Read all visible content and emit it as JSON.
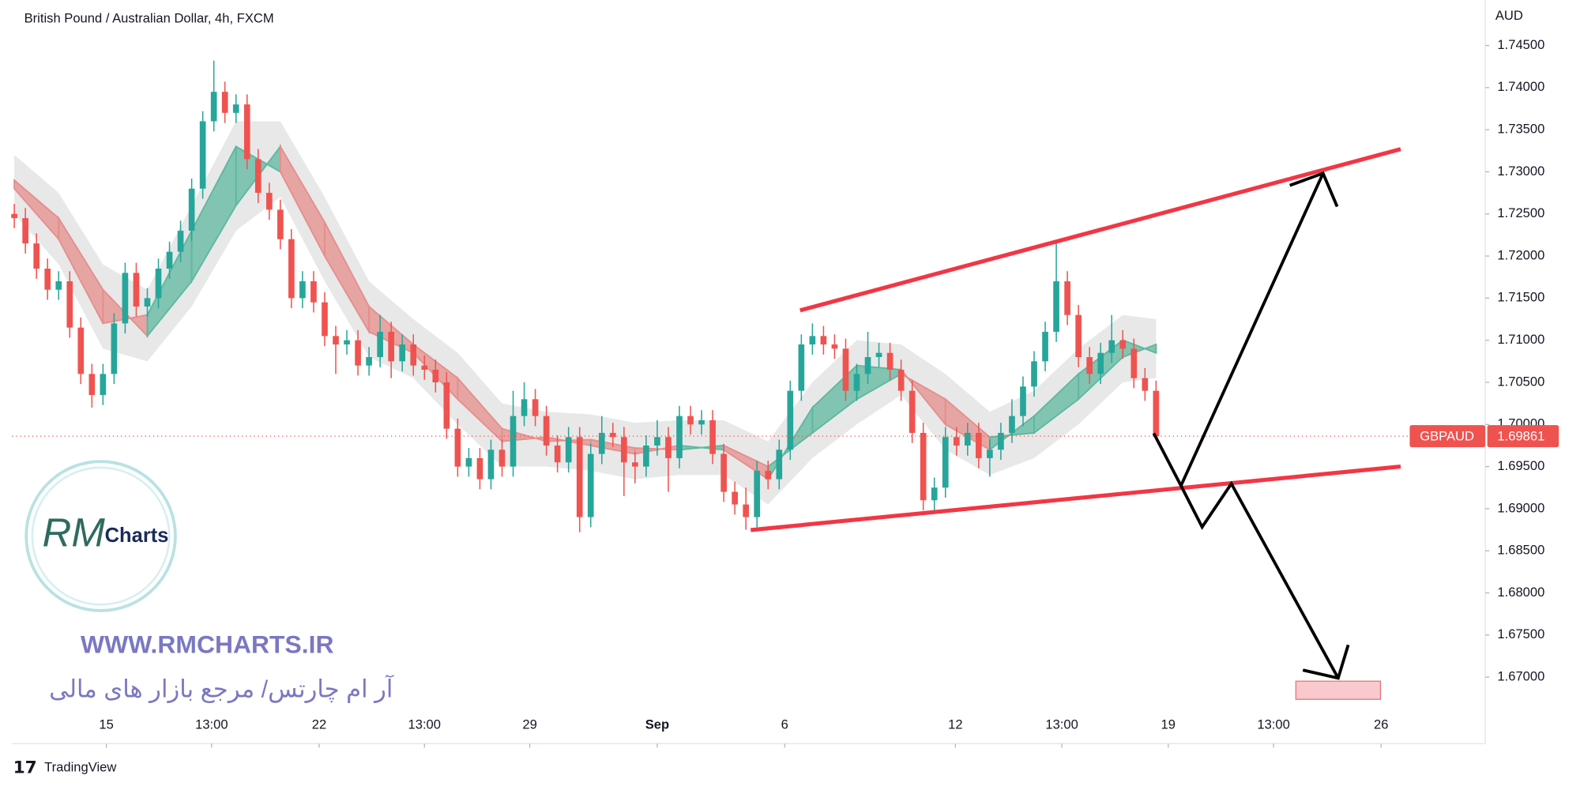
{
  "chart_data": {
    "type": "candlestick",
    "title": "British Pound / Australian Dollar, 4h, FXCM",
    "currency": "AUD",
    "symbol": "GBPAUD",
    "last_price": 1.69861,
    "up_color": "#26a69a",
    "down_color": "#ef5350",
    "ylim": [
      1.6621,
      1.7504
    ],
    "xlim": [
      -0.2,
      132.7
    ],
    "yticks": [
      {
        "value": 1.745,
        "label": "1.74500"
      },
      {
        "value": 1.74,
        "label": "1.74000"
      },
      {
        "value": 1.735,
        "label": "1.73500"
      },
      {
        "value": 1.73,
        "label": "1.73000"
      },
      {
        "value": 1.725,
        "label": "1.72500"
      },
      {
        "value": 1.72,
        "label": "1.72000"
      },
      {
        "value": 1.715,
        "label": "1.71500"
      },
      {
        "value": 1.71,
        "label": "1.71000"
      },
      {
        "value": 1.705,
        "label": "1.70500"
      },
      {
        "value": 1.7,
        "label": "1.70000"
      },
      {
        "value": 1.695,
        "label": "1.69500"
      },
      {
        "value": 1.69,
        "label": "1.69000"
      },
      {
        "value": 1.685,
        "label": "1.68500"
      },
      {
        "value": 1.68,
        "label": "1.68000"
      },
      {
        "value": 1.675,
        "label": "1.67500"
      },
      {
        "value": 1.67,
        "label": "1.67000"
      }
    ],
    "xticks": [
      {
        "value": 8.3,
        "label": "15"
      },
      {
        "value": 17.8,
        "label": "13:00"
      },
      {
        "value": 27.5,
        "label": "22"
      },
      {
        "value": 37.0,
        "label": "13:00"
      },
      {
        "value": 46.5,
        "label": "29"
      },
      {
        "value": 58.0,
        "label": "Sep"
      },
      {
        "value": 69.5,
        "label": "6"
      },
      {
        "value": 84.9,
        "label": "12"
      },
      {
        "value": 94.5,
        "label": "13:00"
      },
      {
        "value": 104.1,
        "label": "19"
      },
      {
        "value": 113.6,
        "label": "13:00"
      },
      {
        "value": 123.3,
        "label": "26"
      }
    ],
    "ohlc": [
      [
        1.725,
        1.7262,
        1.7233,
        1.7245
      ],
      [
        1.7245,
        1.7257,
        1.7203,
        1.7215
      ],
      [
        1.7215,
        1.7227,
        1.7173,
        1.7185
      ],
      [
        1.7185,
        1.7197,
        1.7148,
        1.716
      ],
      [
        1.716,
        1.7182,
        1.7148,
        1.717
      ],
      [
        1.717,
        1.7182,
        1.7103,
        1.7115
      ],
      [
        1.7115,
        1.7127,
        1.7048,
        1.706
      ],
      [
        1.706,
        1.7072,
        1.702,
        1.7035
      ],
      [
        1.7035,
        1.7072,
        1.7023,
        1.706
      ],
      [
        1.706,
        1.7132,
        1.7048,
        1.712
      ],
      [
        1.712,
        1.7192,
        1.7108,
        1.718
      ],
      [
        1.718,
        1.7192,
        1.7128,
        1.714
      ],
      [
        1.714,
        1.7162,
        1.7128,
        1.715
      ],
      [
        1.715,
        1.7197,
        1.7138,
        1.7185
      ],
      [
        1.7185,
        1.7217,
        1.7173,
        1.7205
      ],
      [
        1.7205,
        1.7242,
        1.7193,
        1.723
      ],
      [
        1.723,
        1.7292,
        1.7218,
        1.728
      ],
      [
        1.728,
        1.7372,
        1.7268,
        1.736
      ],
      [
        1.736,
        1.7432,
        1.7348,
        1.7395
      ],
      [
        1.7395,
        1.7407,
        1.7358,
        1.737
      ],
      [
        1.737,
        1.7392,
        1.7358,
        1.738
      ],
      [
        1.738,
        1.7392,
        1.7303,
        1.7315
      ],
      [
        1.7315,
        1.7327,
        1.7263,
        1.7275
      ],
      [
        1.7275,
        1.7287,
        1.7243,
        1.7255
      ],
      [
        1.7255,
        1.7267,
        1.7208,
        1.722
      ],
      [
        1.722,
        1.7232,
        1.7138,
        1.715
      ],
      [
        1.715,
        1.7182,
        1.7138,
        1.717
      ],
      [
        1.717,
        1.7182,
        1.7133,
        1.7145
      ],
      [
        1.7145,
        1.7157,
        1.7093,
        1.7105
      ],
      [
        1.7105,
        1.7117,
        1.706,
        1.7095
      ],
      [
        1.7095,
        1.7112,
        1.7083,
        1.71
      ],
      [
        1.71,
        1.7112,
        1.7058,
        1.707
      ],
      [
        1.707,
        1.7092,
        1.7058,
        1.708
      ],
      [
        1.708,
        1.713,
        1.7068,
        1.711
      ],
      [
        1.711,
        1.7122,
        1.7055,
        1.7075
      ],
      [
        1.7075,
        1.7107,
        1.7063,
        1.7095
      ],
      [
        1.7095,
        1.7107,
        1.7058,
        1.707
      ],
      [
        1.707,
        1.7082,
        1.7053,
        1.7065
      ],
      [
        1.7065,
        1.7077,
        1.7038,
        1.705
      ],
      [
        1.705,
        1.7062,
        1.6983,
        1.6995
      ],
      [
        1.6995,
        1.7007,
        1.6938,
        1.695
      ],
      [
        1.695,
        1.6972,
        1.6938,
        1.696
      ],
      [
        1.696,
        1.6972,
        1.6923,
        1.6935
      ],
      [
        1.6935,
        1.6982,
        1.6923,
        1.697
      ],
      [
        1.697,
        1.6982,
        1.6938,
        1.695
      ],
      [
        1.695,
        1.704,
        1.6938,
        1.701
      ],
      [
        1.701,
        1.705,
        1.6998,
        1.703
      ],
      [
        1.703,
        1.7042,
        1.6998,
        1.701
      ],
      [
        1.701,
        1.7022,
        1.6963,
        1.6975
      ],
      [
        1.6975,
        1.6987,
        1.6943,
        1.6955
      ],
      [
        1.6955,
        1.6997,
        1.6943,
        1.6985
      ],
      [
        1.6985,
        1.6997,
        1.6872,
        1.689
      ],
      [
        1.689,
        1.6977,
        1.6878,
        1.6965
      ],
      [
        1.6965,
        1.701,
        1.6953,
        1.699
      ],
      [
        1.699,
        1.7002,
        1.6973,
        1.6985
      ],
      [
        1.6985,
        1.6997,
        1.6915,
        1.6955
      ],
      [
        1.6955,
        1.6967,
        1.693,
        1.695
      ],
      [
        1.695,
        1.6987,
        1.6938,
        1.6975
      ],
      [
        1.6975,
        1.7005,
        1.6963,
        1.6985
      ],
      [
        1.6985,
        1.6997,
        1.692,
        1.696
      ],
      [
        1.696,
        1.7022,
        1.6948,
        1.701
      ],
      [
        1.701,
        1.7022,
        1.6988,
        1.7
      ],
      [
        1.7,
        1.7017,
        1.6988,
        1.7005
      ],
      [
        1.7005,
        1.7017,
        1.6953,
        1.6965
      ],
      [
        1.6965,
        1.6977,
        1.6908,
        1.692
      ],
      [
        1.692,
        1.6932,
        1.6893,
        1.6905
      ],
      [
        1.6905,
        1.6925,
        1.6875,
        1.689
      ],
      [
        1.689,
        1.6957,
        1.6878,
        1.6945
      ],
      [
        1.6945,
        1.6957,
        1.6923,
        1.6935
      ],
      [
        1.6935,
        1.6982,
        1.6923,
        1.697
      ],
      [
        1.697,
        1.7052,
        1.6958,
        1.704
      ],
      [
        1.704,
        1.7107,
        1.7028,
        1.7095
      ],
      [
        1.7095,
        1.712,
        1.7083,
        1.7105
      ],
      [
        1.7105,
        1.7117,
        1.7083,
        1.7095
      ],
      [
        1.7095,
        1.7107,
        1.7078,
        1.709
      ],
      [
        1.709,
        1.7102,
        1.7028,
        1.704
      ],
      [
        1.704,
        1.7072,
        1.7028,
        1.706
      ],
      [
        1.706,
        1.711,
        1.7048,
        1.708
      ],
      [
        1.708,
        1.7097,
        1.7068,
        1.7085
      ],
      [
        1.7085,
        1.7097,
        1.7053,
        1.7065
      ],
      [
        1.7065,
        1.7077,
        1.7028,
        1.704
      ],
      [
        1.704,
        1.7052,
        1.6978,
        1.699
      ],
      [
        1.699,
        1.7002,
        1.6898,
        1.691
      ],
      [
        1.691,
        1.6937,
        1.6898,
        1.6925
      ],
      [
        1.6925,
        1.6997,
        1.6913,
        1.6985
      ],
      [
        1.6985,
        1.6997,
        1.6963,
        1.6975
      ],
      [
        1.6975,
        1.7002,
        1.6963,
        1.699
      ],
      [
        1.699,
        1.7002,
        1.6948,
        1.696
      ],
      [
        1.696,
        1.6982,
        1.6938,
        1.697
      ],
      [
        1.697,
        1.7002,
        1.6958,
        1.699
      ],
      [
        1.699,
        1.703,
        1.6978,
        1.701
      ],
      [
        1.701,
        1.7057,
        1.6998,
        1.7045
      ],
      [
        1.7045,
        1.7087,
        1.7033,
        1.7075
      ],
      [
        1.7075,
        1.7122,
        1.7063,
        1.711
      ],
      [
        1.711,
        1.7215,
        1.7098,
        1.717
      ],
      [
        1.717,
        1.7182,
        1.7118,
        1.713
      ],
      [
        1.713,
        1.7142,
        1.7068,
        1.708
      ],
      [
        1.708,
        1.7092,
        1.7048,
        1.706
      ],
      [
        1.706,
        1.7097,
        1.7048,
        1.7085
      ],
      [
        1.7085,
        1.713,
        1.7073,
        1.71
      ],
      [
        1.71,
        1.7112,
        1.7078,
        1.709
      ],
      [
        1.709,
        1.7102,
        1.7043,
        1.7055
      ],
      [
        1.7055,
        1.7067,
        1.7028,
        1.704
      ],
      [
        1.704,
        1.7052,
        1.6983,
        1.6986
      ]
    ],
    "ribbon": {
      "up_color": "#5fb8a0",
      "down_color": "#e58f8c",
      "envelope_color": "#d9d9d9",
      "x": [
        0,
        4,
        8,
        12,
        16,
        20,
        24,
        28,
        32,
        36,
        40,
        44,
        48,
        52,
        56,
        60,
        64,
        68,
        72,
        76,
        80,
        84,
        88,
        92,
        96,
        100,
        103
      ],
      "fast": [
        1.728,
        1.722,
        1.712,
        1.713,
        1.723,
        1.733,
        1.73,
        1.72,
        1.711,
        1.7085,
        1.703,
        1.698,
        1.6985,
        1.6975,
        1.6965,
        1.6975,
        1.697,
        1.6935,
        1.702,
        1.707,
        1.7065,
        1.7,
        1.697,
        1.701,
        1.706,
        1.71,
        1.7085
      ],
      "slow": [
        1.729,
        1.7245,
        1.716,
        1.7105,
        1.717,
        1.726,
        1.733,
        1.724,
        1.714,
        1.7095,
        1.7055,
        1.6995,
        1.698,
        1.6982,
        1.6972,
        1.697,
        1.6975,
        1.695,
        1.699,
        1.703,
        1.706,
        1.703,
        1.6985,
        1.699,
        1.703,
        1.708,
        1.7095
      ],
      "envelope_upper": [
        1.732,
        1.7275,
        1.719,
        1.716,
        1.726,
        1.736,
        1.736,
        1.727,
        1.717,
        1.7125,
        1.7085,
        1.7025,
        1.7015,
        1.7012,
        1.7002,
        1.7005,
        1.7005,
        1.698,
        1.705,
        1.71,
        1.7095,
        1.706,
        1.7015,
        1.704,
        1.709,
        1.713,
        1.7125
      ],
      "envelope_lower": [
        1.725,
        1.719,
        1.709,
        1.7075,
        1.714,
        1.723,
        1.727,
        1.717,
        1.708,
        1.7055,
        1.7,
        1.695,
        1.695,
        1.6945,
        1.6935,
        1.694,
        1.694,
        1.6905,
        1.696,
        1.7,
        1.7035,
        1.697,
        1.694,
        1.696,
        1.7,
        1.705,
        1.7055
      ]
    }
  },
  "watermark": {
    "logo_script": "RM",
    "logo_text": "Charts",
    "url": "WWW.RMCHARTS.IR",
    "tagline": "آر ام چارتس/ مرجع بازار های مالی"
  },
  "branding": "TradingView"
}
